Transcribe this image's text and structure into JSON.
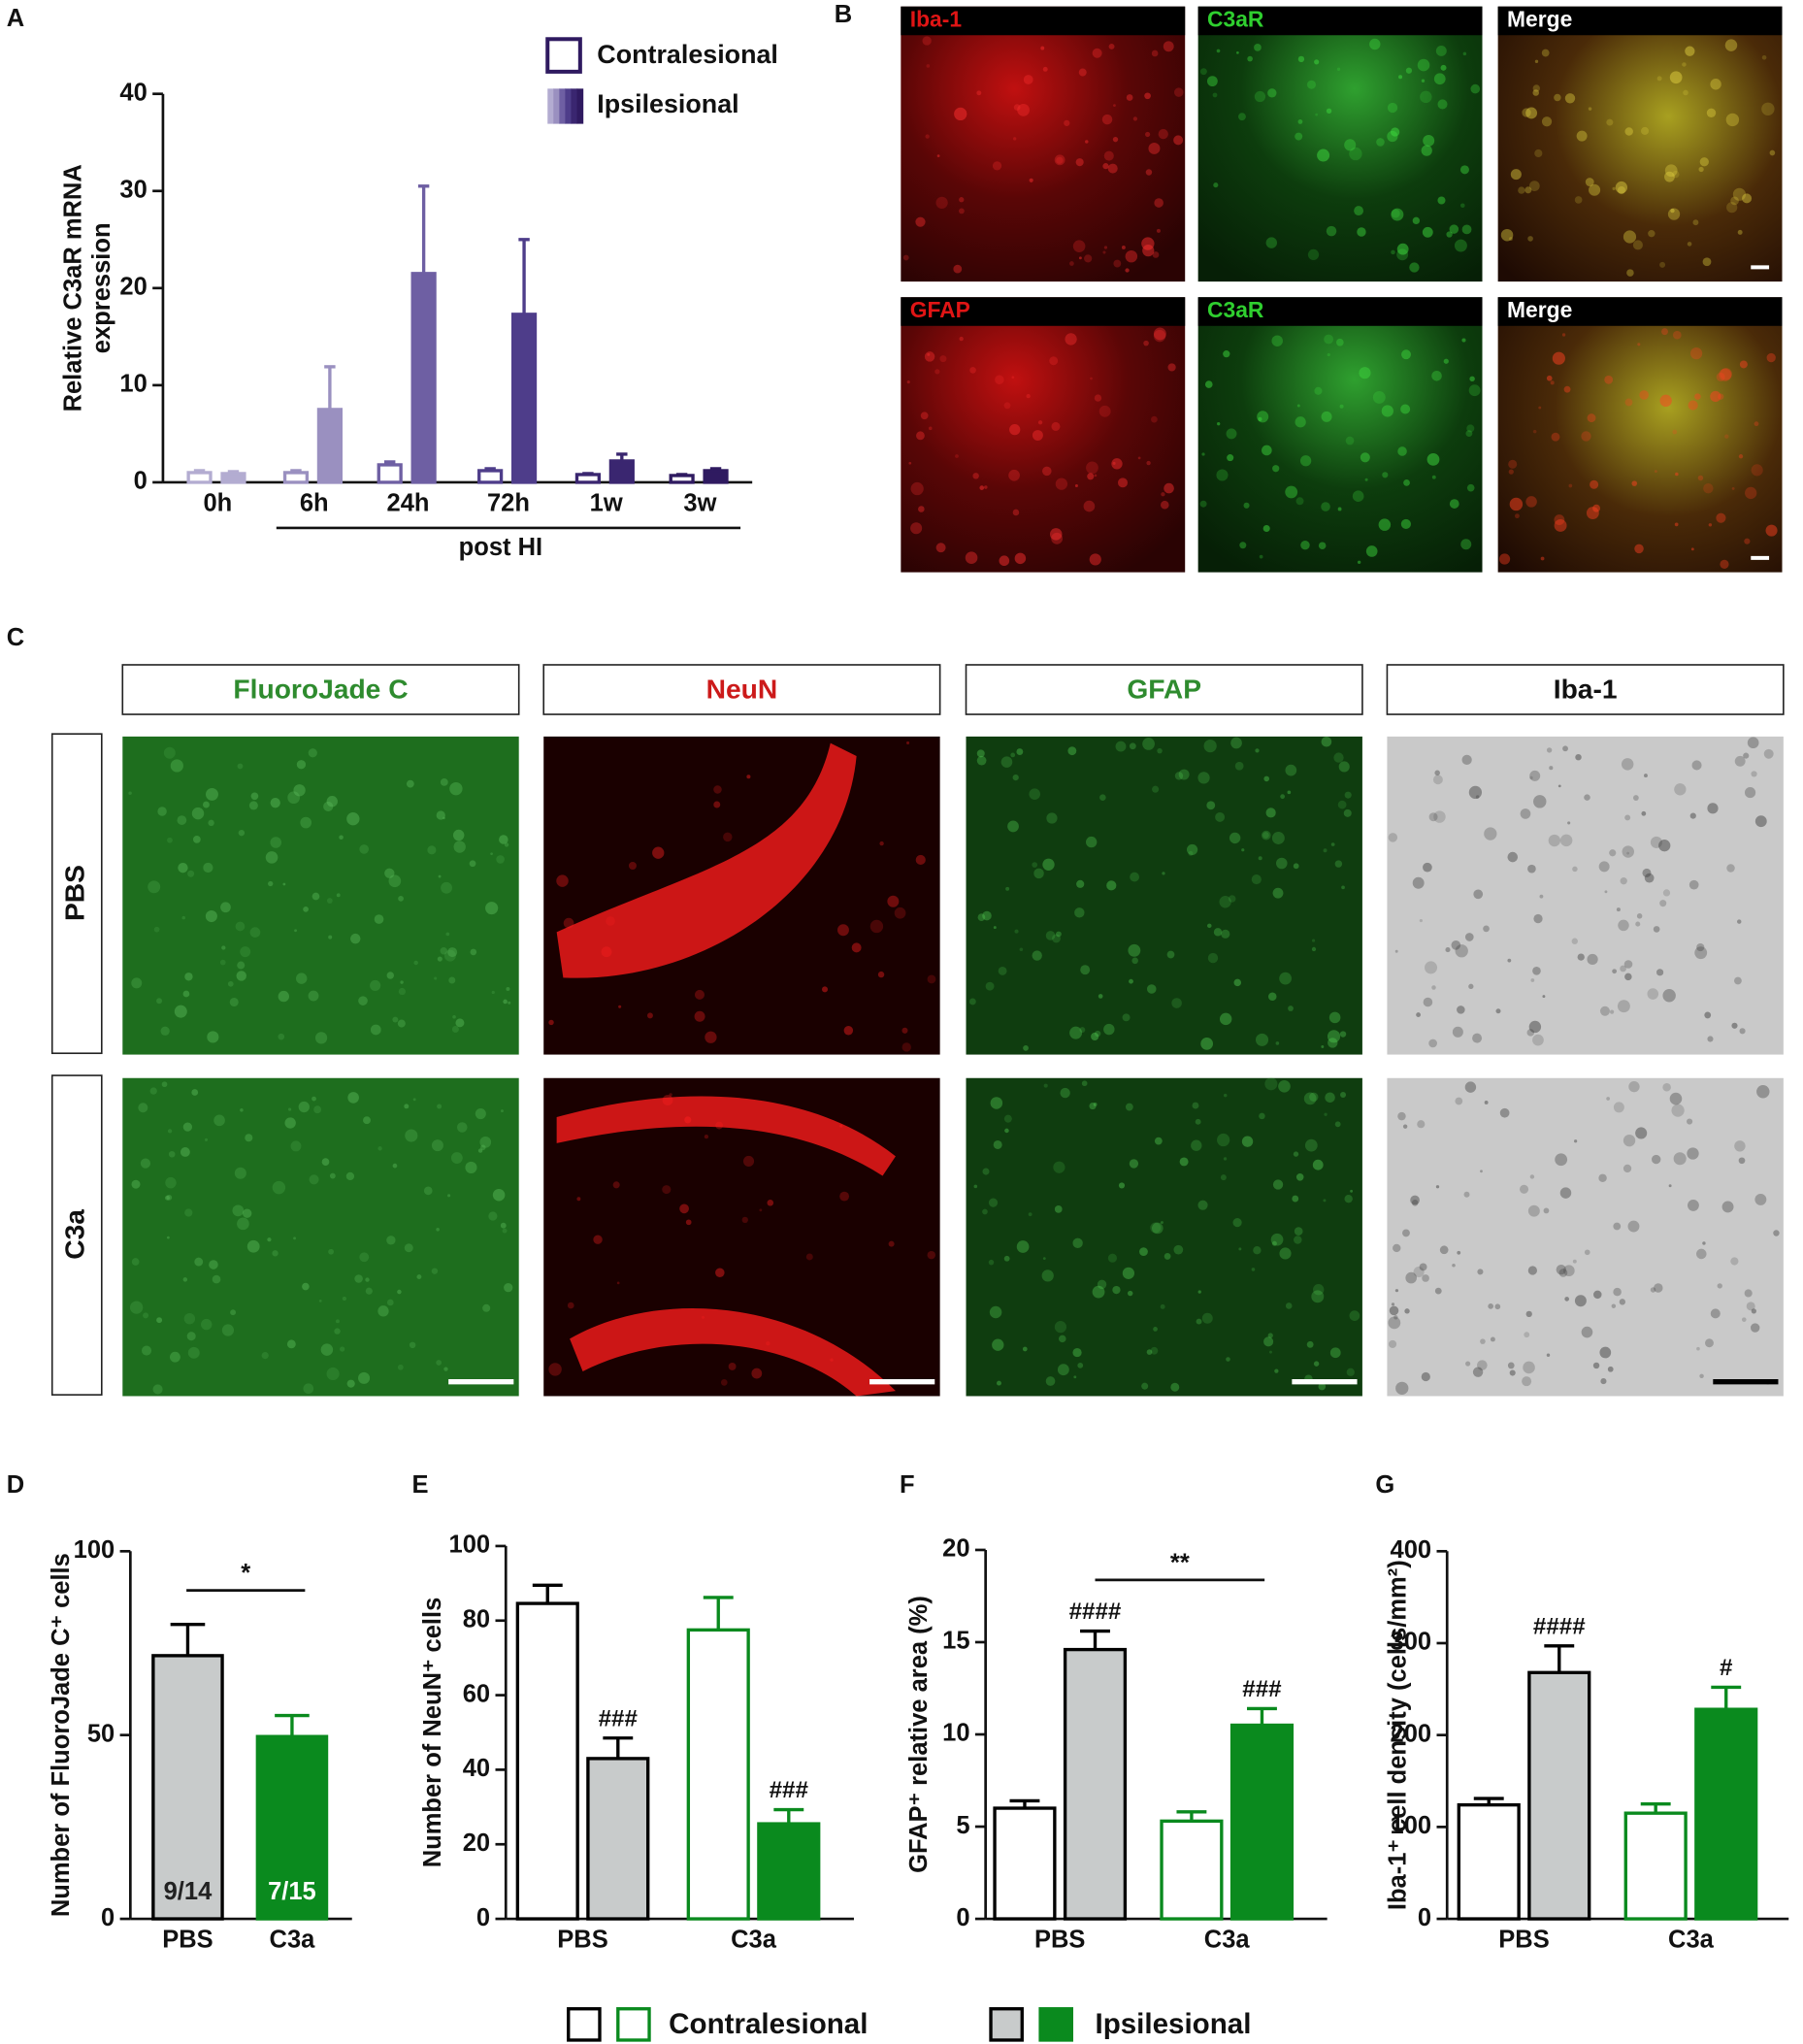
{
  "panel_letters": [
    "A",
    "B",
    "C",
    "D",
    "E",
    "F",
    "G"
  ],
  "panel_b": {
    "rows": [
      [
        "Iba-1",
        "C3aR",
        "Merge"
      ],
      [
        "GFAP",
        "C3aR",
        "Merge"
      ]
    ]
  },
  "panel_c": {
    "columns": [
      "FluoroJade C",
      "NeuN",
      "GFAP",
      "Iba-1"
    ],
    "rows": [
      "PBS",
      "C3a"
    ]
  },
  "chart_data": [
    {
      "type": "bar",
      "y_label": [
        "Relative C3aR mRNA",
        "expression"
      ],
      "xlabel": "post HI",
      "categories": [
        "0h",
        "6h",
        "24h",
        "72h",
        "1w",
        "3w"
      ],
      "series": [
        {
          "name": "Contralesional",
          "fill": "hollow",
          "colors": [
            "#b3acd1",
            "#9a90c0",
            "#6e5fa3",
            "#4e3d8a",
            "#3a2670",
            "#2f1a60"
          ],
          "values": [
            1,
            1,
            1.8,
            1.2,
            0.8,
            0.7
          ],
          "errors": [
            0.2,
            0.2,
            0.3,
            0.2,
            0.1,
            0.1
          ]
        },
        {
          "name": "Ipsilesional",
          "fill": "solid",
          "colors": [
            "#b3acd1",
            "#9a90c0",
            "#6e5fa3",
            "#4e3d8a",
            "#3a2670",
            "#2f1a60"
          ],
          "values": [
            0.9,
            7.5,
            21.5,
            17.3,
            2.2,
            1.2
          ],
          "errors": [
            0.2,
            4.4,
            9,
            7.7,
            0.7,
            0.2
          ]
        }
      ],
      "ylim": [
        0,
        40
      ],
      "yticks": [
        0,
        10,
        20,
        30,
        40
      ],
      "legend": "upper right"
    },
    {
      "type": "bar",
      "y_label": "Number of FluoroJade C⁺ cells",
      "categories": [
        "PBS",
        "C3a"
      ],
      "series": [
        {
          "fill": "solid",
          "colors": [
            "#c8cbcb",
            "#0a8a1e"
          ],
          "edgecolors": [
            "#000000",
            "#0a8a1e"
          ],
          "values": [
            71.6,
            49.6
          ],
          "errors": [
            8.5,
            5.7
          ],
          "bar_labels": [
            "9/14",
            "7/15"
          ],
          "bar_label_colors": [
            "#222222",
            "#ffffff"
          ]
        }
      ],
      "bracket": {
        "label": "*"
      },
      "ylim": [
        0,
        100
      ],
      "yticks": [
        0,
        50,
        100
      ]
    },
    {
      "type": "bar",
      "y_label": "Number of NeuN⁺ cells",
      "categories": [
        "PBS",
        "C3a"
      ],
      "series": [
        {
          "name": "Contralesional",
          "fill": "hollow",
          "colors": [
            "#000000",
            "#0a8a1e"
          ],
          "values": [
            84.6,
            77.5
          ],
          "errors": [
            4.9,
            8.7
          ]
        },
        {
          "name": "Ipsilesional",
          "fill": "solid",
          "colors": [
            "#c8cbcb",
            "#0a8a1e"
          ],
          "edgecolors": [
            "#000000",
            "#0a8a1e"
          ],
          "values": [
            43,
            25.5
          ],
          "errors": [
            5.5,
            3.8
          ],
          "sig_labels": [
            "###",
            "###"
          ]
        }
      ],
      "ylim": [
        0,
        100
      ],
      "yticks": [
        0,
        20,
        40,
        60,
        80,
        100
      ]
    },
    {
      "type": "bar",
      "y_label": "GFAP⁺ relative area (%)",
      "categories": [
        "PBS",
        "C3a"
      ],
      "series": [
        {
          "name": "Contralesional",
          "fill": "hollow",
          "colors": [
            "#000000",
            "#0a8a1e"
          ],
          "values": [
            6.0,
            5.3
          ],
          "errors": [
            0.4,
            0.5
          ]
        },
        {
          "name": "Ipsilesional",
          "fill": "solid",
          "colors": [
            "#c8cbcb",
            "#0a8a1e"
          ],
          "edgecolors": [
            "#000000",
            "#0a8a1e"
          ],
          "values": [
            14.6,
            10.5
          ],
          "errors": [
            1.0,
            0.9
          ],
          "sig_labels": [
            "####",
            "###"
          ]
        }
      ],
      "bracket": {
        "label": "**"
      },
      "ylim": [
        0,
        20
      ],
      "yticks": [
        0,
        5,
        10,
        15,
        20
      ]
    },
    {
      "type": "bar",
      "y_label": "Iba-1⁺ cell density (cells/mm²)",
      "categories": [
        "PBS",
        "C3a"
      ],
      "series": [
        {
          "name": "Contralesional",
          "fill": "hollow",
          "colors": [
            "#000000",
            "#0a8a1e"
          ],
          "values": [
            124,
            115
          ],
          "errors": [
            7,
            10
          ]
        },
        {
          "name": "Ipsilesional",
          "fill": "solid",
          "colors": [
            "#c8cbcb",
            "#0a8a1e"
          ],
          "edgecolors": [
            "#000000",
            "#0a8a1e"
          ],
          "values": [
            268,
            228
          ],
          "errors": [
            29,
            24
          ],
          "sig_labels": [
            "####",
            "#"
          ]
        }
      ],
      "ylim": [
        0,
        400
      ],
      "yticks": [
        0,
        100,
        200,
        300,
        400
      ]
    }
  ]
}
